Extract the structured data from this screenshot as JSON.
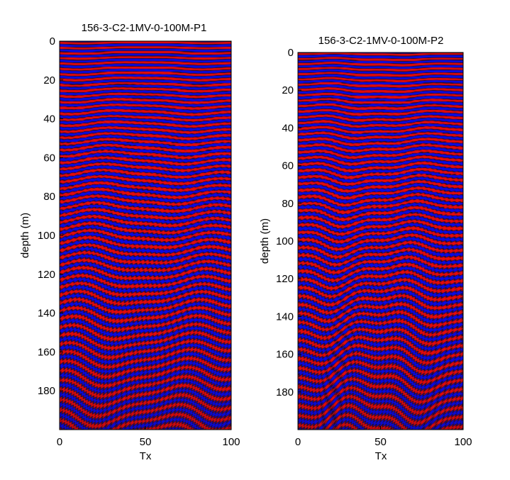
{
  "chart_data": [
    {
      "type": "heatmap",
      "title": "156-3-C2-1MV-0-100M-P1",
      "xlabel": "Tx",
      "ylabel": "depth (m)",
      "xlim": [
        0,
        100
      ],
      "ylim": [
        0,
        200
      ],
      "y_reversed": true,
      "xticks": [
        "0",
        "50",
        "100"
      ],
      "yticks": [
        "0",
        "20",
        "40",
        "60",
        "80",
        "100",
        "120",
        "140",
        "160",
        "180"
      ],
      "colormap": {
        "positive": "#dd0000",
        "negative": "#0000dd",
        "zero": "#1a1a1a"
      },
      "horizon_seed": 11
    },
    {
      "type": "heatmap",
      "title": "156-3-C2-1MV-0-100M-P2",
      "xlabel": "Tx",
      "ylabel": "depth (m)",
      "xlim": [
        0,
        100
      ],
      "ylim": [
        0,
        200
      ],
      "y_reversed": true,
      "xticks": [
        "0",
        "50",
        "100"
      ],
      "yticks": [
        "0",
        "20",
        "40",
        "60",
        "80",
        "100",
        "120",
        "140",
        "160",
        "180"
      ],
      "colormap": {
        "positive": "#dd0000",
        "negative": "#0000dd",
        "zero": "#1a1a1a"
      },
      "horizon_seed": 29
    }
  ]
}
